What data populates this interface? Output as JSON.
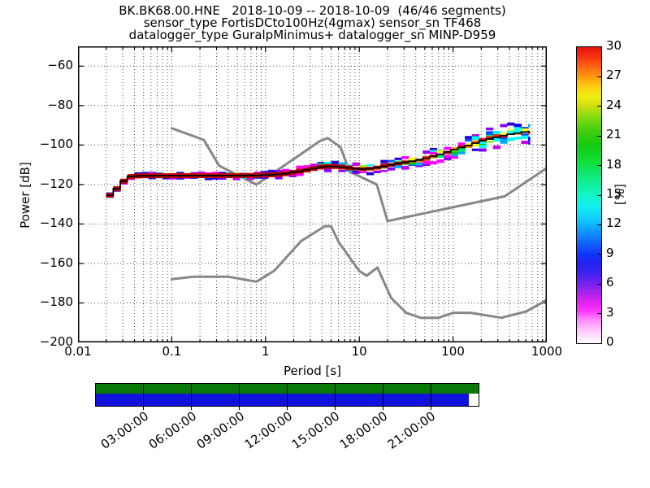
{
  "title_lines": {
    "line1": "BK.BK68.00.HNE   2018-10-09 -- 2018-10-09  (46/46 segments)",
    "line2": "sensor_type FortisDCto100Hz(4gmax) sensor_sn TF468",
    "line3": "datalogger_type GuralpMinimus+ datalogger_sn MINP-D959"
  },
  "chart_data": {
    "type": "heatmap",
    "subtype": "ppsd-probability-histogram",
    "xlabel": "Period [s]",
    "ylabel": "Power [dB]",
    "xscale": "log",
    "xlim": [
      0.01,
      1000
    ],
    "ylim": [
      -200,
      -50
    ],
    "grid": true,
    "x_tick_values": [
      0.01,
      0.1,
      1,
      10,
      100,
      1000
    ],
    "x_tick_labels": [
      "0.01",
      "0.1",
      "1",
      "10",
      "100",
      "1000"
    ],
    "y_tick_values": [
      -200,
      -180,
      -160,
      -140,
      -120,
      -100,
      -80,
      -60
    ],
    "y_tick_labels": [
      "−200",
      "−180",
      "−160",
      "−140",
      "−120",
      "−100",
      "−80",
      "−60"
    ],
    "colorbar": {
      "label": "[%]",
      "min": 0,
      "max": 30,
      "tick_values": [
        0,
        3,
        6,
        9,
        12,
        15,
        18,
        21,
        24,
        27,
        30
      ],
      "tick_labels": [
        "0",
        "3",
        "6",
        "9",
        "12",
        "15",
        "18",
        "21",
        "24",
        "27",
        "30"
      ],
      "colormap": "pqlx",
      "stops": [
        {
          "at": 0,
          "color": "#ffffff"
        },
        {
          "at": 1.2,
          "color": "#ffccff"
        },
        {
          "at": 2.4,
          "color": "#ff88ff"
        },
        {
          "at": 3.3,
          "color": "#ff33ff"
        },
        {
          "at": 4.2,
          "color": "#dd22ee"
        },
        {
          "at": 5.1,
          "color": "#aa22ee"
        },
        {
          "at": 6,
          "color": "#7722ee"
        },
        {
          "at": 7,
          "color": "#4422ee"
        },
        {
          "at": 8,
          "color": "#2222ee"
        },
        {
          "at": 9,
          "color": "#1133ff"
        },
        {
          "at": 10.2,
          "color": "#1166ff"
        },
        {
          "at": 11.4,
          "color": "#1199ff"
        },
        {
          "at": 12.6,
          "color": "#11ccff"
        },
        {
          "at": 13.8,
          "color": "#11eeee"
        },
        {
          "at": 15,
          "color": "#11f5c8"
        },
        {
          "at": 16.2,
          "color": "#11ee99"
        },
        {
          "at": 17.4,
          "color": "#11e566"
        },
        {
          "at": 18.6,
          "color": "#11dd33"
        },
        {
          "at": 20,
          "color": "#11cc11"
        },
        {
          "at": 21.5,
          "color": "#44cc11"
        },
        {
          "at": 23,
          "color": "#88dd11"
        },
        {
          "at": 24,
          "color": "#ccdd11"
        },
        {
          "at": 25,
          "color": "#eeee11"
        },
        {
          "at": 26,
          "color": "#ffcc11"
        },
        {
          "at": 27,
          "color": "#ff9911"
        },
        {
          "at": 28,
          "color": "#ff6611"
        },
        {
          "at": 29,
          "color": "#f53311"
        },
        {
          "at": 30,
          "color": "#e61111"
        }
      ]
    },
    "noise_models": {
      "color": "#878787",
      "nhnm": [
        [
          0.1,
          -91.5
        ],
        [
          0.22,
          -97.4
        ],
        [
          0.32,
          -110.5
        ],
        [
          0.8,
          -120.0
        ],
        [
          3.8,
          -98.0
        ],
        [
          4.6,
          -96.5
        ],
        [
          6.3,
          -101.0
        ],
        [
          7.9,
          -113.5
        ],
        [
          15.4,
          -120.0
        ],
        [
          20.0,
          -138.5
        ],
        [
          354.8,
          -126.0
        ],
        [
          1000,
          -111.6
        ]
      ],
      "nlnm": [
        [
          0.1,
          -168.0
        ],
        [
          0.17,
          -166.7
        ],
        [
          0.4,
          -166.7
        ],
        [
          0.8,
          -169.2
        ],
        [
          1.24,
          -163.7
        ],
        [
          2.4,
          -148.6
        ],
        [
          4.3,
          -141.1
        ],
        [
          5.0,
          -141.1
        ],
        [
          6.0,
          -149.0
        ],
        [
          10.0,
          -163.8
        ],
        [
          12.0,
          -166.2
        ],
        [
          15.6,
          -162.1
        ],
        [
          21.9,
          -177.5
        ],
        [
          31.6,
          -185.0
        ],
        [
          45.0,
          -187.5
        ],
        [
          70.0,
          -187.5
        ],
        [
          101.0,
          -185.0
        ],
        [
          154.0,
          -185.0
        ],
        [
          328.0,
          -187.5
        ],
        [
          600.0,
          -184.4
        ],
        [
          1000,
          -178.5
        ]
      ]
    },
    "mode_curve": [
      [
        0.02,
        -127
      ],
      [
        0.023,
        -124.5
      ],
      [
        0.026,
        -122
      ],
      [
        0.029,
        -119.5
      ],
      [
        0.032,
        -117.5
      ],
      [
        0.036,
        -116
      ],
      [
        0.045,
        -115.6
      ],
      [
        0.1,
        -115.5
      ],
      [
        0.3,
        -115.5
      ],
      [
        0.8,
        -115.4
      ],
      [
        1.5,
        -114.8
      ],
      [
        2.5,
        -113
      ],
      [
        4,
        -111
      ],
      [
        5,
        -110.7
      ],
      [
        7,
        -111.3
      ],
      [
        9,
        -112
      ],
      [
        12,
        -112.2
      ],
      [
        16,
        -111.3
      ],
      [
        22,
        -110
      ],
      [
        30,
        -108.8
      ],
      [
        45,
        -107.5
      ],
      [
        70,
        -105
      ],
      [
        100,
        -102.5
      ],
      [
        140,
        -100.5
      ],
      [
        200,
        -98
      ],
      [
        280,
        -96.3
      ],
      [
        380,
        -94.8
      ],
      [
        480,
        -94
      ],
      [
        600,
        -93.3
      ],
      [
        660,
        -93.2
      ]
    ],
    "histogram_band": {
      "period_range": [
        0.02,
        660
      ],
      "bin_step_decades": 0.075,
      "core_color": "#c00000",
      "spread_db": [
        [
          0.02,
          0.8
        ],
        [
          0.036,
          1.2
        ],
        [
          0.1,
          1.4
        ],
        [
          1,
          1.6
        ],
        [
          3,
          2.2
        ],
        [
          10,
          2.6
        ],
        [
          30,
          3.2
        ],
        [
          100,
          4.2
        ],
        [
          250,
          5.2
        ],
        [
          660,
          6.0
        ]
      ],
      "palette": {
        "outer": [
          "#ff00ff",
          "#cc00ee",
          "#8800ff",
          "#2200dd"
        ],
        "mid": [
          "#0000ff",
          "#0055ff",
          "#00aaff",
          "#00ffff",
          "#ff00ff"
        ],
        "inner": [
          "#00ffff",
          "#00ee66",
          "#00cc00",
          "#aaee00",
          "#ffff00",
          "#0044ff"
        ],
        "center": [
          "#ff8800",
          "#ff2200",
          "#dd0000",
          "#ffff00",
          "#00cc00"
        ]
      },
      "mode_line_color": "#000000"
    }
  },
  "timeline": {
    "rows": [
      {
        "name": "green-row",
        "color": "#087808",
        "fraction": 1.0
      },
      {
        "name": "blue-row",
        "color": "#1212dd",
        "fraction": 0.975
      }
    ],
    "n_intervals": 8,
    "tick_labels": [
      "03:00:00",
      "06:00:00",
      "09:00:00",
      "12:00:00",
      "15:00:00",
      "18:00:00",
      "21:00:00"
    ]
  }
}
